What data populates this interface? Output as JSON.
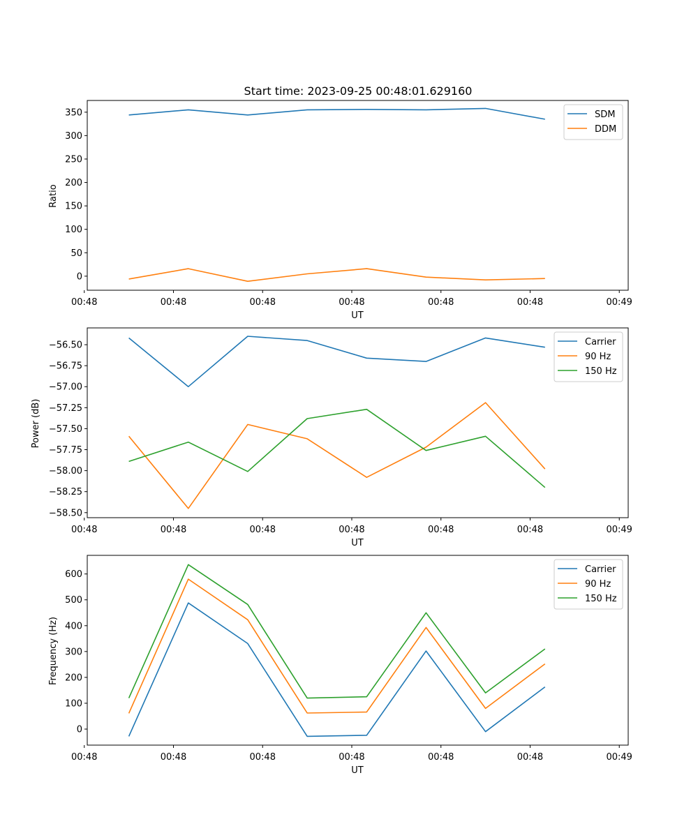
{
  "figure": {
    "title": "Start time: 2023-09-25 00:48:01.629160"
  },
  "colors": {
    "blue": "#1f77b4",
    "orange": "#ff7f0e",
    "green": "#2ca02c",
    "axes": "#000000",
    "legend_border": "#cccccc"
  },
  "chart_data": [
    {
      "type": "line",
      "title": "Start time: 2023-09-25 00:48:01.629160",
      "xlabel": "UT",
      "ylabel": "Ratio",
      "xlim": [
        -0.7,
        8.4
      ],
      "ylim": [
        -30,
        375
      ],
      "x": [
        0,
        1,
        2,
        3,
        4,
        5,
        6,
        7
      ],
      "xticks": [
        -0.75,
        0.75,
        2.25,
        3.75,
        5.25,
        6.75,
        8.25
      ],
      "xtick_labels": [
        "00:48",
        "00:48",
        "00:48",
        "00:48",
        "00:48",
        "00:48",
        "00:49"
      ],
      "yticks": [
        0,
        50,
        100,
        150,
        200,
        250,
        300,
        350
      ],
      "ytick_labels": [
        "0",
        "50",
        "100",
        "150",
        "200",
        "250",
        "300",
        "350"
      ],
      "legend_position": "top-right",
      "series": [
        {
          "name": "SDM",
          "color_key": "blue",
          "values": [
            344,
            355,
            344,
            355,
            356,
            355,
            358,
            335
          ]
        },
        {
          "name": "DDM",
          "color_key": "orange",
          "values": [
            -6,
            16,
            -11,
            5,
            16,
            -2,
            -8,
            -5
          ]
        }
      ]
    },
    {
      "type": "line",
      "title": "",
      "xlabel": "UT",
      "ylabel": "Power (dB)",
      "xlim": [
        -0.7,
        8.4
      ],
      "ylim": [
        -58.56,
        -56.3
      ],
      "x": [
        0,
        1,
        2,
        3,
        4,
        5,
        6,
        7
      ],
      "xticks": [
        -0.75,
        0.75,
        2.25,
        3.75,
        5.25,
        6.75,
        8.25
      ],
      "xtick_labels": [
        "00:48",
        "00:48",
        "00:48",
        "00:48",
        "00:48",
        "00:48",
        "00:49"
      ],
      "yticks": [
        -58.5,
        -58.25,
        -58.0,
        -57.75,
        -57.5,
        -57.25,
        -57.0,
        -56.75,
        -56.5
      ],
      "ytick_labels": [
        "−58.50",
        "−58.25",
        "−58.00",
        "−57.75",
        "−57.50",
        "−57.25",
        "−57.00",
        "−56.75",
        "−56.50"
      ],
      "legend_position": "top-right",
      "series": [
        {
          "name": "Carrier",
          "color_key": "blue",
          "values": [
            -56.42,
            -57.0,
            -56.4,
            -56.45,
            -56.66,
            -56.7,
            -56.42,
            -56.53
          ]
        },
        {
          "name": "90 Hz",
          "color_key": "orange",
          "values": [
            -57.59,
            -58.45,
            -57.45,
            -57.62,
            -58.08,
            -57.72,
            -57.19,
            -57.98
          ]
        },
        {
          "name": "150 Hz",
          "color_key": "green",
          "values": [
            -57.89,
            -57.66,
            -58.01,
            -57.38,
            -57.27,
            -57.76,
            -57.59,
            -58.2
          ]
        }
      ]
    },
    {
      "type": "line",
      "title": "",
      "xlabel": "UT",
      "ylabel": "Frequency (Hz)",
      "xlim": [
        -0.7,
        8.4
      ],
      "ylim": [
        -62,
        672
      ],
      "x": [
        0,
        1,
        2,
        3,
        4,
        5,
        6,
        7
      ],
      "xticks": [
        -0.75,
        0.75,
        2.25,
        3.75,
        5.25,
        6.75,
        8.25
      ],
      "xtick_labels": [
        "00:48",
        "00:48",
        "00:48",
        "00:48",
        "00:48",
        "00:48",
        "00:49"
      ],
      "yticks": [
        0,
        100,
        200,
        300,
        400,
        500,
        600
      ],
      "ytick_labels": [
        "0",
        "100",
        "200",
        "300",
        "400",
        "500",
        "600"
      ],
      "legend_position": "top-right",
      "series": [
        {
          "name": "Carrier",
          "color_key": "blue",
          "values": [
            -28,
            488,
            331,
            -28,
            -24,
            302,
            -10,
            163
          ]
        },
        {
          "name": "90 Hz",
          "color_key": "orange",
          "values": [
            61,
            580,
            423,
            62,
            66,
            393,
            80,
            252
          ]
        },
        {
          "name": "150 Hz",
          "color_key": "green",
          "values": [
            120,
            636,
            482,
            120,
            125,
            450,
            140,
            310
          ]
        }
      ]
    }
  ]
}
